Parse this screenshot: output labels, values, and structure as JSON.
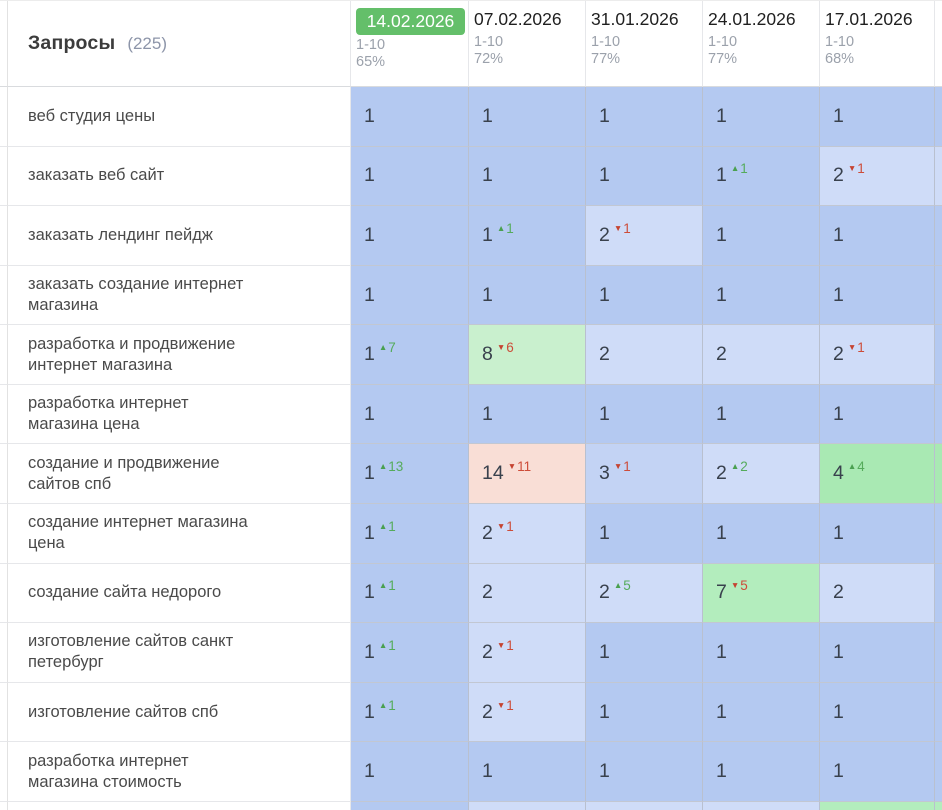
{
  "header": {
    "title": "Запросы",
    "count": "(225)",
    "columns": [
      {
        "date": "14.02.2026",
        "range": "1-10",
        "percent": "65%",
        "active": true
      },
      {
        "date": "07.02.2026",
        "range": "1-10",
        "percent": "72%",
        "active": false
      },
      {
        "date": "31.01.2026",
        "range": "1-10",
        "percent": "77%",
        "active": false
      },
      {
        "date": "24.01.2026",
        "range": "1-10",
        "percent": "77%",
        "active": false
      },
      {
        "date": "17.01.2026",
        "range": "1-10",
        "percent": "68%",
        "active": false
      }
    ]
  },
  "icons": {
    "up": "▲",
    "down": "▼"
  },
  "colors": {
    "active_date_bg": "#64bf6a",
    "up_green": "#55ab5b",
    "down_red": "#cd4c39",
    "b1": "#b4c9f1",
    "b2": "#cfdcf8",
    "b3": "#c3d3f4",
    "g4": "#a9e9b3",
    "g7": "#b3edbd",
    "g8": "#c9f0ce",
    "r14": "#f9ded6"
  },
  "rows": [
    {
      "keyword": "веб студия цены",
      "cells": [
        {
          "pos": "1",
          "bg": "b1"
        },
        {
          "pos": "1",
          "bg": "b1"
        },
        {
          "pos": "1",
          "bg": "b1"
        },
        {
          "pos": "1",
          "bg": "b1"
        },
        {
          "pos": "1",
          "bg": "b1"
        }
      ]
    },
    {
      "keyword": "заказать веб сайт",
      "cells": [
        {
          "pos": "1",
          "bg": "b1"
        },
        {
          "pos": "1",
          "bg": "b1"
        },
        {
          "pos": "1",
          "bg": "b1"
        },
        {
          "pos": "1",
          "delta": "1",
          "dir": "up",
          "bg": "b1"
        },
        {
          "pos": "2",
          "delta": "1",
          "dir": "down",
          "bg": "b2"
        }
      ]
    },
    {
      "keyword": "заказать лендинг пейдж",
      "cells": [
        {
          "pos": "1",
          "bg": "b1"
        },
        {
          "pos": "1",
          "delta": "1",
          "dir": "up",
          "bg": "b1"
        },
        {
          "pos": "2",
          "delta": "1",
          "dir": "down",
          "bg": "b2"
        },
        {
          "pos": "1",
          "bg": "b1"
        },
        {
          "pos": "1",
          "bg": "b1"
        }
      ]
    },
    {
      "keyword": "заказать создание интернет магазина",
      "cells": [
        {
          "pos": "1",
          "bg": "b1"
        },
        {
          "pos": "1",
          "bg": "b1"
        },
        {
          "pos": "1",
          "bg": "b1"
        },
        {
          "pos": "1",
          "bg": "b1"
        },
        {
          "pos": "1",
          "bg": "b1"
        }
      ]
    },
    {
      "keyword": "разработка и продвижение интернет магазина",
      "cells": [
        {
          "pos": "1",
          "delta": "7",
          "dir": "up",
          "bg": "b1"
        },
        {
          "pos": "8",
          "delta": "6",
          "dir": "down",
          "bg": "g8"
        },
        {
          "pos": "2",
          "bg": "b2"
        },
        {
          "pos": "2",
          "bg": "b2"
        },
        {
          "pos": "2",
          "delta": "1",
          "dir": "down",
          "bg": "b2"
        }
      ]
    },
    {
      "keyword": "разработка интернет магазина цена",
      "cells": [
        {
          "pos": "1",
          "bg": "b1"
        },
        {
          "pos": "1",
          "bg": "b1"
        },
        {
          "pos": "1",
          "bg": "b1"
        },
        {
          "pos": "1",
          "bg": "b1"
        },
        {
          "pos": "1",
          "bg": "b1"
        }
      ]
    },
    {
      "keyword": "создание и продвижение сайтов спб",
      "cells": [
        {
          "pos": "1",
          "delta": "13",
          "dir": "up",
          "bg": "b1"
        },
        {
          "pos": "14",
          "delta": "11",
          "dir": "down",
          "bg": "r14"
        },
        {
          "pos": "3",
          "delta": "1",
          "dir": "down",
          "bg": "b3"
        },
        {
          "pos": "2",
          "delta": "2",
          "dir": "up",
          "bg": "b2"
        },
        {
          "pos": "4",
          "delta": "4",
          "dir": "up",
          "bg": "g4"
        }
      ]
    },
    {
      "keyword": "создание интернет магазина цена",
      "cells": [
        {
          "pos": "1",
          "delta": "1",
          "dir": "up",
          "bg": "b1"
        },
        {
          "pos": "2",
          "delta": "1",
          "dir": "down",
          "bg": "b2"
        },
        {
          "pos": "1",
          "bg": "b1"
        },
        {
          "pos": "1",
          "bg": "b1"
        },
        {
          "pos": "1",
          "bg": "b1"
        }
      ]
    },
    {
      "keyword": "создание сайта недорого",
      "cells": [
        {
          "pos": "1",
          "delta": "1",
          "dir": "up",
          "bg": "b1"
        },
        {
          "pos": "2",
          "bg": "b2"
        },
        {
          "pos": "2",
          "delta": "5",
          "dir": "up",
          "bg": "b2"
        },
        {
          "pos": "7",
          "delta": "5",
          "dir": "down",
          "bg": "g7"
        },
        {
          "pos": "2",
          "bg": "b2"
        }
      ]
    },
    {
      "keyword": "изготовление сайтов санкт петербург",
      "cells": [
        {
          "pos": "1",
          "delta": "1",
          "dir": "up",
          "bg": "b1"
        },
        {
          "pos": "2",
          "delta": "1",
          "dir": "down",
          "bg": "b2"
        },
        {
          "pos": "1",
          "bg": "b1"
        },
        {
          "pos": "1",
          "bg": "b1"
        },
        {
          "pos": "1",
          "bg": "b1"
        }
      ]
    },
    {
      "keyword": "изготовление сайтов спб",
      "cells": [
        {
          "pos": "1",
          "delta": "1",
          "dir": "up",
          "bg": "b1"
        },
        {
          "pos": "2",
          "delta": "1",
          "dir": "down",
          "bg": "b2"
        },
        {
          "pos": "1",
          "bg": "b1"
        },
        {
          "pos": "1",
          "bg": "b1"
        },
        {
          "pos": "1",
          "bg": "b1"
        }
      ]
    },
    {
      "keyword": "разработка интернет магазина стоимость",
      "cells": [
        {
          "pos": "1",
          "bg": "b1"
        },
        {
          "pos": "1",
          "bg": "b1"
        },
        {
          "pos": "1",
          "bg": "b1"
        },
        {
          "pos": "1",
          "bg": "b1"
        },
        {
          "pos": "1",
          "bg": "b1"
        }
      ]
    }
  ],
  "partial_row": {
    "cells": [
      {
        "bg": "b1"
      },
      {
        "bg": "b2"
      },
      {
        "bg": "b2"
      },
      {
        "bg": "b2"
      },
      {
        "bg": "g7"
      }
    ]
  },
  "sliver_column": {
    "header_bg": "#ffffff",
    "cell_bgs": [
      "b1",
      "b2",
      "b1",
      "b1",
      "b1",
      "b1",
      "g4",
      "b1",
      "b1",
      "b1",
      "b1",
      "b1",
      "g7"
    ]
  }
}
